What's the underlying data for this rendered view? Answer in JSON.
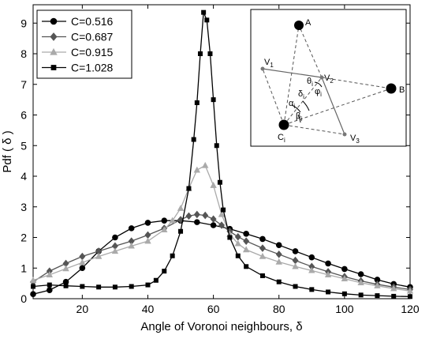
{
  "chart_data": {
    "type": "line",
    "xlabel": "Angle of Voronoi neighbours, δ",
    "ylabel": "Pdf ( δ )",
    "xlim": [
      5,
      120
    ],
    "ylim": [
      0,
      9.6
    ],
    "x_ticks": [
      20,
      40,
      60,
      80,
      100,
      120
    ],
    "y_ticks": [
      0,
      1,
      2,
      3,
      4,
      5,
      6,
      7,
      8,
      9
    ],
    "grid": false,
    "legend_position": "top-left",
    "series": [
      {
        "name": "C=0.516",
        "marker": "circle",
        "color": "#000000",
        "points": [
          [
            5,
            0.15
          ],
          [
            10,
            0.28
          ],
          [
            15,
            0.55
          ],
          [
            20,
            1.0
          ],
          [
            25,
            1.55
          ],
          [
            30,
            2.0
          ],
          [
            35,
            2.3
          ],
          [
            40,
            2.48
          ],
          [
            45,
            2.55
          ],
          [
            50,
            2.55
          ],
          [
            55,
            2.5
          ],
          [
            60,
            2.4
          ],
          [
            65,
            2.28
          ],
          [
            70,
            2.12
          ],
          [
            75,
            1.95
          ],
          [
            80,
            1.75
          ],
          [
            85,
            1.55
          ],
          [
            90,
            1.35
          ],
          [
            95,
            1.15
          ],
          [
            100,
            0.97
          ],
          [
            105,
            0.8
          ],
          [
            110,
            0.62
          ],
          [
            115,
            0.48
          ],
          [
            120,
            0.38
          ]
        ]
      },
      {
        "name": "C=0.687",
        "marker": "diamond",
        "color": "#555555",
        "points": [
          [
            5,
            0.55
          ],
          [
            10,
            0.9
          ],
          [
            15,
            1.15
          ],
          [
            20,
            1.38
          ],
          [
            25,
            1.55
          ],
          [
            30,
            1.72
          ],
          [
            35,
            1.88
          ],
          [
            40,
            2.08
          ],
          [
            45,
            2.3
          ],
          [
            50,
            2.58
          ],
          [
            52.5,
            2.7
          ],
          [
            55,
            2.75
          ],
          [
            57.5,
            2.72
          ],
          [
            60,
            2.6
          ],
          [
            62.5,
            2.4
          ],
          [
            65,
            2.2
          ],
          [
            67.5,
            2.02
          ],
          [
            70,
            1.88
          ],
          [
            75,
            1.65
          ],
          [
            80,
            1.45
          ],
          [
            85,
            1.25
          ],
          [
            90,
            1.05
          ],
          [
            95,
            0.88
          ],
          [
            100,
            0.72
          ],
          [
            105,
            0.58
          ],
          [
            110,
            0.47
          ],
          [
            115,
            0.38
          ],
          [
            120,
            0.3
          ]
        ]
      },
      {
        "name": "C=0.915",
        "marker": "triangle",
        "color": "#aaaaaa",
        "points": [
          [
            5,
            0.6
          ],
          [
            10,
            0.78
          ],
          [
            15,
            0.98
          ],
          [
            20,
            1.18
          ],
          [
            25,
            1.38
          ],
          [
            30,
            1.55
          ],
          [
            35,
            1.72
          ],
          [
            40,
            1.88
          ],
          [
            45,
            2.25
          ],
          [
            47.5,
            2.55
          ],
          [
            50,
            2.95
          ],
          [
            52.5,
            3.6
          ],
          [
            55,
            4.2
          ],
          [
            57.5,
            4.35
          ],
          [
            60,
            3.7
          ],
          [
            62.5,
            2.75
          ],
          [
            65,
            2.1
          ],
          [
            67.5,
            1.8
          ],
          [
            70,
            1.6
          ],
          [
            75,
            1.38
          ],
          [
            80,
            1.2
          ],
          [
            85,
            1.05
          ],
          [
            90,
            0.92
          ],
          [
            95,
            0.78
          ],
          [
            100,
            0.65
          ],
          [
            105,
            0.52
          ],
          [
            110,
            0.42
          ],
          [
            115,
            0.33
          ],
          [
            120,
            0.25
          ]
        ]
      },
      {
        "name": "C=1.028",
        "marker": "square",
        "color": "#000000",
        "points": [
          [
            5,
            0.4
          ],
          [
            10,
            0.45
          ],
          [
            15,
            0.42
          ],
          [
            20,
            0.4
          ],
          [
            25,
            0.38
          ],
          [
            30,
            0.38
          ],
          [
            35,
            0.4
          ],
          [
            40,
            0.45
          ],
          [
            42.5,
            0.6
          ],
          [
            45,
            0.9
          ],
          [
            47.5,
            1.4
          ],
          [
            50,
            2.2
          ],
          [
            52.5,
            3.6
          ],
          [
            54,
            5.2
          ],
          [
            55,
            6.4
          ],
          [
            56,
            8.0
          ],
          [
            57,
            9.35
          ],
          [
            58,
            9.1
          ],
          [
            59,
            8.0
          ],
          [
            60,
            6.5
          ],
          [
            61,
            5.0
          ],
          [
            62,
            3.8
          ],
          [
            63,
            2.9
          ],
          [
            65,
            2.0
          ],
          [
            67.5,
            1.4
          ],
          [
            70,
            1.05
          ],
          [
            75,
            0.75
          ],
          [
            80,
            0.55
          ],
          [
            85,
            0.4
          ],
          [
            90,
            0.3
          ],
          [
            95,
            0.22
          ],
          [
            100,
            0.16
          ],
          [
            105,
            0.12
          ],
          [
            110,
            0.1
          ],
          [
            115,
            0.08
          ],
          [
            120,
            0.07
          ]
        ]
      }
    ]
  },
  "inset": {
    "label_A": "A",
    "label_B": "B",
    "label_V1": "V",
    "sub_V1": "1",
    "label_V2": "V",
    "sub_V2": "2",
    "label_V3": "V",
    "sub_V3": "3",
    "label_C": "C",
    "sub_C": "i",
    "label_theta": "θ",
    "sub_theta": "i",
    "label_phi": "φ",
    "sub_phi": "i",
    "label_delta": "δ",
    "sub_delta": "i",
    "label_alpha": "α",
    "sub_alpha": "i",
    "label_beta": "β",
    "sub_beta": "i"
  }
}
